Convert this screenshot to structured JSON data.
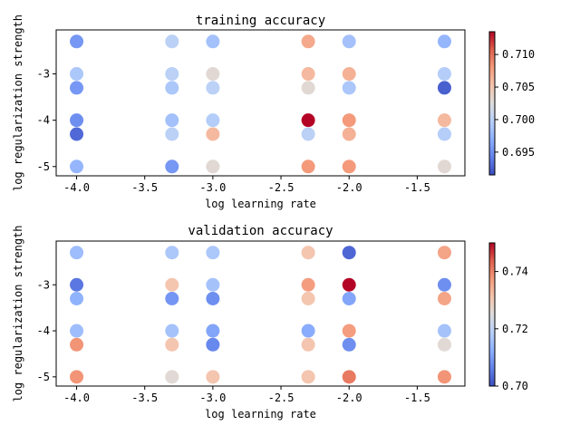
{
  "chart_data": [
    {
      "type": "scatter",
      "title": "training accuracy",
      "xlabel": "log learning rate",
      "ylabel": "log regularization strength",
      "xlim": [
        -4.15,
        -1.15
      ],
      "ylim": [
        -5.2,
        -2.05
      ],
      "xticks": [
        -4.0,
        -3.5,
        -3.0,
        -2.5,
        -2.0,
        -1.5
      ],
      "xtick_labels": [
        "-4.0",
        "-3.5",
        "-3.0",
        "-2.5",
        "-2.0",
        "-1.5"
      ],
      "yticks": [
        -5,
        -4,
        -3
      ],
      "ytick_labels": [
        "-5",
        "-4",
        "-3"
      ],
      "colorbar": {
        "min": 0.6915,
        "max": 0.7135,
        "ticks": [
          0.695,
          0.7,
          0.705,
          0.71
        ],
        "tick_labels": [
          "0.695",
          "0.700",
          "0.705",
          "0.710"
        ]
      },
      "x": [
        -4.0,
        -3.3,
        -3.0,
        -2.3,
        -2.0,
        -1.3
      ],
      "y": [
        -2.3,
        -3.0,
        -3.3,
        -4.0,
        -4.3,
        -5.0
      ],
      "values": [
        [
          0.6955,
          0.7,
          0.6985,
          0.707,
          0.6985,
          0.6975
        ],
        [
          0.699,
          0.7,
          0.703,
          0.706,
          0.7065,
          0.6995
        ],
        [
          0.6955,
          0.699,
          0.7,
          0.703,
          0.699,
          0.6925
        ],
        [
          0.695,
          0.6985,
          0.6995,
          0.7135,
          0.708,
          0.706
        ],
        [
          0.693,
          0.7,
          0.706,
          0.7,
          0.7065,
          0.6995
        ],
        [
          0.6975,
          0.6955,
          0.703,
          0.708,
          0.708,
          0.703
        ]
      ]
    },
    {
      "type": "scatter",
      "title": "validation accuracy",
      "xlabel": "log learning rate",
      "ylabel": "log regularization strength",
      "xlim": [
        -4.15,
        -1.15
      ],
      "ylim": [
        -5.2,
        -2.05
      ],
      "xticks": [
        -4.0,
        -3.5,
        -3.0,
        -2.5,
        -2.0,
        -1.5
      ],
      "xtick_labels": [
        "-4.0",
        "-3.5",
        "-3.0",
        "-2.5",
        "-2.0",
        "-1.5"
      ],
      "yticks": [
        -5,
        -4,
        -3
      ],
      "ytick_labels": [
        "-5",
        "-4",
        "-3"
      ],
      "colorbar": {
        "min": 0.7,
        "max": 0.75,
        "ticks": [
          0.7,
          0.72,
          0.74
        ],
        "tick_labels": [
          "0.70",
          "0.72",
          "0.74"
        ]
      },
      "x": [
        -4.0,
        -3.3,
        -3.0,
        -2.3,
        -2.0,
        -1.3
      ],
      "y": [
        -2.3,
        -3.0,
        -3.3,
        -4.0,
        -4.3,
        -5.0
      ],
      "values": [
        [
          0.715,
          0.717,
          0.717,
          0.731,
          0.703,
          0.736
        ],
        [
          0.705,
          0.731,
          0.716,
          0.737,
          0.75,
          0.708
        ],
        [
          0.713,
          0.709,
          0.708,
          0.731,
          0.711,
          0.736
        ],
        [
          0.715,
          0.716,
          0.711,
          0.712,
          0.737,
          0.716
        ],
        [
          0.738,
          0.731,
          0.707,
          0.731,
          0.708,
          0.726
        ],
        [
          0.738,
          0.726,
          0.731,
          0.731,
          0.741,
          0.738
        ]
      ]
    }
  ]
}
